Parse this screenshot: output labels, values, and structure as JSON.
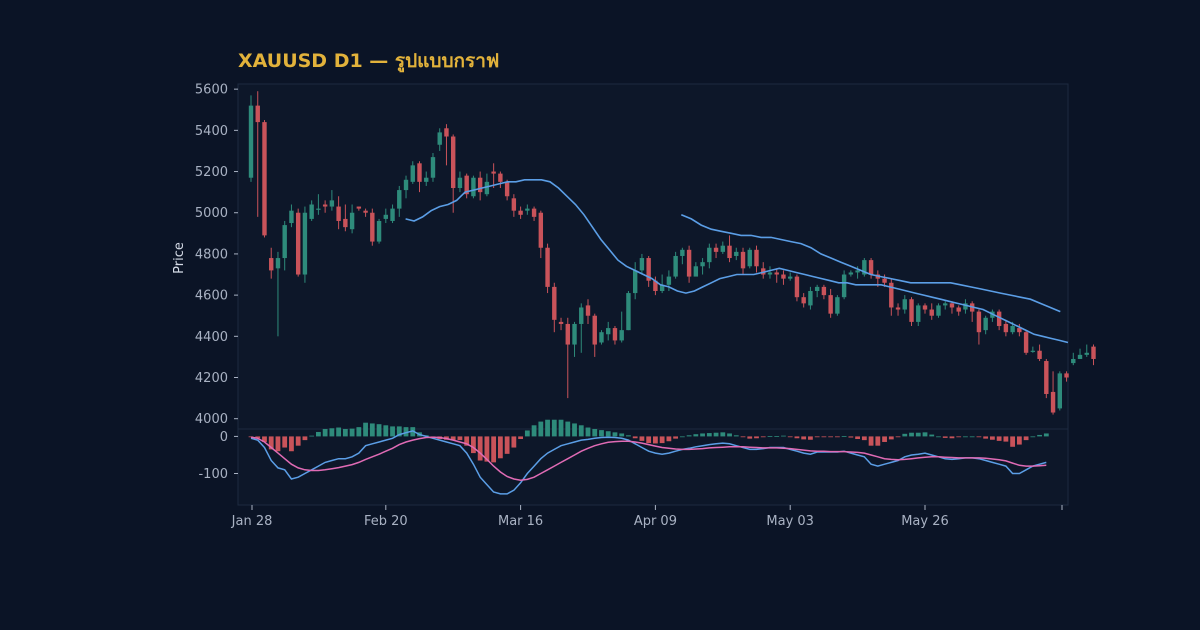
{
  "chart_data": {
    "type": "candlestick",
    "title": "XAUUSD D1 — รูปแบบกราฟ",
    "ylabel": "Price",
    "ylim": [
      3950,
      5625
    ],
    "yticks": [
      4000,
      4200,
      4400,
      4600,
      4800,
      5000,
      5200,
      5400,
      5600
    ],
    "x_tick_labels": [
      "Jan 28",
      "Feb 20",
      "Mar 16",
      "Apr 09",
      "May 03",
      "May 26"
    ],
    "macd_ylim": [
      -185,
      20
    ],
    "macd_yticks": [
      0,
      -100
    ],
    "colors": {
      "up": "#2e8b7b",
      "down": "#c9535a",
      "ma_fast": "#5b9ee6",
      "ma_slow": "#5b9ee6",
      "macd": "#5b9ee6",
      "signal": "#e06bb5"
    },
    "candles": [
      [
        5170,
        5520,
        5570,
        5150
      ],
      [
        5520,
        5440,
        5590,
        4980
      ],
      [
        5440,
        4890,
        5450,
        4880
      ],
      [
        4780,
        4720,
        4830,
        4680
      ],
      [
        4730,
        4780,
        4810,
        4400
      ],
      [
        4780,
        4940,
        4960,
        4720
      ],
      [
        4950,
        5010,
        5040,
        4930
      ],
      [
        5000,
        4700,
        5020,
        4690
      ],
      [
        4700,
        5000,
        5030,
        4660
      ],
      [
        4970,
        5040,
        5060,
        4960
      ],
      [
        5020,
        5020,
        5090,
        4990
      ],
      [
        5040,
        5030,
        5060,
        5000
      ],
      [
        5030,
        5060,
        5110,
        5010
      ],
      [
        5030,
        4960,
        5080,
        4920
      ],
      [
        4970,
        4930,
        5040,
        4910
      ],
      [
        4920,
        5000,
        5040,
        4900
      ],
      [
        5030,
        5020,
        5030,
        5010
      ],
      [
        5010,
        5000,
        5020,
        4980
      ],
      [
        5000,
        4860,
        5020,
        4840
      ],
      [
        4860,
        4960,
        4970,
        4850
      ],
      [
        4970,
        4990,
        5020,
        4950
      ],
      [
        4960,
        5020,
        5040,
        4950
      ],
      [
        5020,
        5110,
        5130,
        4980
      ],
      [
        5110,
        5160,
        5180,
        5070
      ],
      [
        5150,
        5230,
        5250,
        5140
      ],
      [
        5240,
        5150,
        5250,
        5100
      ],
      [
        5150,
        5170,
        5200,
        5130
      ],
      [
        5170,
        5270,
        5290,
        5150
      ],
      [
        5330,
        5390,
        5410,
        5300
      ],
      [
        5410,
        5370,
        5430,
        5230
      ],
      [
        5370,
        5120,
        5380,
        5000
      ],
      [
        5120,
        5170,
        5200,
        5100
      ],
      [
        5180,
        5090,
        5190,
        5070
      ],
      [
        5080,
        5170,
        5180,
        5070
      ],
      [
        5170,
        5100,
        5200,
        5060
      ],
      [
        5090,
        5150,
        5190,
        5080
      ],
      [
        5200,
        5190,
        5240,
        5120
      ],
      [
        5190,
        5150,
        5200,
        5120
      ],
      [
        5150,
        5080,
        5160,
        5060
      ],
      [
        5070,
        5010,
        5090,
        4980
      ],
      [
        5010,
        4990,
        5030,
        4970
      ],
      [
        5010,
        5020,
        5040,
        4990
      ],
      [
        5020,
        4980,
        5030,
        4960
      ],
      [
        5000,
        4830,
        5010,
        4780
      ],
      [
        4830,
        4640,
        4850,
        4610
      ],
      [
        4640,
        4480,
        4660,
        4420
      ],
      [
        4470,
        4460,
        4490,
        4430
      ],
      [
        4460,
        4360,
        4490,
        4100
      ],
      [
        4360,
        4460,
        4470,
        4300
      ],
      [
        4460,
        4540,
        4560,
        4320
      ],
      [
        4550,
        4500,
        4580,
        4460
      ],
      [
        4500,
        4360,
        4510,
        4300
      ],
      [
        4370,
        4420,
        4430,
        4360
      ],
      [
        4410,
        4440,
        4470,
        4380
      ],
      [
        4440,
        4380,
        4450,
        4360
      ],
      [
        4380,
        4430,
        4520,
        4370
      ],
      [
        4430,
        4610,
        4620,
        4430
      ],
      [
        4610,
        4720,
        4760,
        4580
      ],
      [
        4720,
        4780,
        4800,
        4700
      ],
      [
        4780,
        4670,
        4790,
        4640
      ],
      [
        4670,
        4620,
        4690,
        4600
      ],
      [
        4620,
        4650,
        4700,
        4610
      ],
      [
        4650,
        4690,
        4720,
        4620
      ],
      [
        4690,
        4790,
        4810,
        4680
      ],
      [
        4790,
        4820,
        4830,
        4750
      ],
      [
        4820,
        4690,
        4840,
        4660
      ],
      [
        4690,
        4740,
        4760,
        4700
      ],
      [
        4740,
        4760,
        4780,
        4700
      ],
      [
        4760,
        4830,
        4850,
        4730
      ],
      [
        4830,
        4810,
        4850,
        4780
      ],
      [
        4810,
        4840,
        4860,
        4800
      ],
      [
        4840,
        4780,
        4890,
        4760
      ],
      [
        4790,
        4810,
        4830,
        4770
      ],
      [
        4810,
        4730,
        4830,
        4700
      ],
      [
        4740,
        4820,
        4830,
        4730
      ],
      [
        4820,
        4740,
        4840,
        4710
      ],
      [
        4730,
        4700,
        4760,
        4680
      ],
      [
        4700,
        4710,
        4740,
        4680
      ],
      [
        4710,
        4700,
        4730,
        4660
      ],
      [
        4700,
        4680,
        4720,
        4650
      ],
      [
        4680,
        4690,
        4710,
        4670
      ],
      [
        4690,
        4590,
        4700,
        4570
      ],
      [
        4590,
        4560,
        4610,
        4540
      ],
      [
        4550,
        4620,
        4640,
        4530
      ],
      [
        4620,
        4640,
        4650,
        4590
      ],
      [
        4640,
        4600,
        4650,
        4580
      ],
      [
        4600,
        4510,
        4630,
        4490
      ],
      [
        4510,
        4590,
        4600,
        4500
      ],
      [
        4590,
        4700,
        4720,
        4580
      ],
      [
        4700,
        4710,
        4720,
        4690
      ],
      [
        4710,
        4720,
        4740,
        4680
      ],
      [
        4700,
        4770,
        4780,
        4690
      ],
      [
        4770,
        4700,
        4780,
        4680
      ],
      [
        4700,
        4680,
        4720,
        4640
      ],
      [
        4680,
        4660,
        4700,
        4640
      ],
      [
        4660,
        4540,
        4680,
        4500
      ],
      [
        4540,
        4530,
        4560,
        4500
      ],
      [
        4530,
        4580,
        4600,
        4510
      ],
      [
        4580,
        4470,
        4590,
        4450
      ],
      [
        4470,
        4550,
        4560,
        4450
      ],
      [
        4550,
        4530,
        4560,
        4510
      ],
      [
        4530,
        4500,
        4560,
        4480
      ],
      [
        4500,
        4550,
        4560,
        4490
      ],
      [
        4550,
        4560,
        4570,
        4530
      ],
      [
        4560,
        4540,
        4570,
        4510
      ],
      [
        4540,
        4520,
        4550,
        4500
      ],
      [
        4530,
        4560,
        4580,
        4510
      ],
      [
        4560,
        4520,
        4570,
        4470
      ],
      [
        4520,
        4420,
        4530,
        4360
      ],
      [
        4430,
        4490,
        4500,
        4410
      ],
      [
        4490,
        4520,
        4530,
        4470
      ],
      [
        4520,
        4450,
        4530,
        4430
      ],
      [
        4460,
        4420,
        4480,
        4400
      ],
      [
        4420,
        4450,
        4470,
        4410
      ],
      [
        4440,
        4420,
        4460,
        4400
      ],
      [
        4420,
        4320,
        4430,
        4310
      ],
      [
        4330,
        4330,
        4350,
        4320
      ],
      [
        4330,
        4290,
        4360,
        4280
      ],
      [
        4280,
        4120,
        4290,
        4100
      ],
      [
        4130,
        4030,
        4230,
        4020
      ],
      [
        4050,
        4220,
        4230,
        4040
      ],
      [
        4220,
        4200,
        4230,
        4180
      ],
      [
        4270,
        4290,
        4320,
        4260
      ],
      [
        4290,
        4310,
        4340,
        4290
      ],
      [
        4310,
        4320,
        4360,
        4300
      ],
      [
        4350,
        4290,
        4360,
        4260
      ]
    ],
    "ma_fast": [
      [
        19,
        4970
      ],
      [
        20,
        4960
      ],
      [
        21,
        4980
      ],
      [
        22,
        5010
      ],
      [
        23,
        5030
      ],
      [
        24,
        5040
      ],
      [
        25,
        5060
      ],
      [
        26,
        5100
      ],
      [
        27,
        5110
      ],
      [
        28,
        5120
      ],
      [
        29,
        5130
      ],
      [
        30,
        5140
      ],
      [
        31,
        5150
      ],
      [
        32,
        5150
      ],
      [
        33,
        5160
      ],
      [
        34,
        5160
      ],
      [
        35,
        5160
      ],
      [
        36,
        5150
      ],
      [
        37,
        5120
      ],
      [
        38,
        5080
      ],
      [
        39,
        5040
      ],
      [
        40,
        4990
      ],
      [
        41,
        4930
      ],
      [
        42,
        4870
      ],
      [
        43,
        4820
      ],
      [
        44,
        4770
      ],
      [
        45,
        4740
      ],
      [
        46,
        4720
      ],
      [
        47,
        4700
      ],
      [
        48,
        4680
      ],
      [
        49,
        4650
      ],
      [
        50,
        4640
      ],
      [
        51,
        4620
      ],
      [
        52,
        4610
      ],
      [
        53,
        4620
      ],
      [
        54,
        4640
      ],
      [
        55,
        4660
      ],
      [
        56,
        4680
      ],
      [
        57,
        4690
      ],
      [
        58,
        4700
      ],
      [
        59,
        4700
      ],
      [
        60,
        4700
      ],
      [
        61,
        4710
      ],
      [
        62,
        4720
      ],
      [
        63,
        4730
      ],
      [
        64,
        4720
      ],
      [
        65,
        4710
      ],
      [
        66,
        4700
      ],
      [
        67,
        4690
      ],
      [
        68,
        4680
      ],
      [
        69,
        4670
      ],
      [
        70,
        4660
      ],
      [
        71,
        4660
      ],
      [
        72,
        4650
      ],
      [
        73,
        4650
      ],
      [
        74,
        4650
      ],
      [
        75,
        4650
      ],
      [
        76,
        4640
      ],
      [
        77,
        4630
      ],
      [
        78,
        4620
      ],
      [
        79,
        4610
      ],
      [
        80,
        4600
      ],
      [
        81,
        4590
      ],
      [
        82,
        4580
      ],
      [
        83,
        4570
      ],
      [
        84,
        4560
      ],
      [
        85,
        4550
      ],
      [
        86,
        4540
      ],
      [
        87,
        4530
      ],
      [
        88,
        4510
      ],
      [
        89,
        4490
      ],
      [
        90,
        4470
      ],
      [
        91,
        4450
      ],
      [
        92,
        4430
      ],
      [
        93,
        4410
      ],
      [
        94,
        4400
      ],
      [
        95,
        4390
      ],
      [
        96,
        4380
      ],
      [
        97,
        4370
      ]
    ],
    "ma_slow": [
      [
        43,
        4990
      ],
      [
        44,
        4970
      ],
      [
        45,
        4940
      ],
      [
        46,
        4920
      ],
      [
        47,
        4910
      ],
      [
        48,
        4900
      ],
      [
        49,
        4890
      ],
      [
        50,
        4890
      ],
      [
        51,
        4880
      ],
      [
        52,
        4880
      ],
      [
        53,
        4870
      ],
      [
        54,
        4860
      ],
      [
        55,
        4850
      ],
      [
        56,
        4830
      ],
      [
        57,
        4800
      ],
      [
        58,
        4780
      ],
      [
        59,
        4760
      ],
      [
        60,
        4740
      ],
      [
        61,
        4720
      ],
      [
        62,
        4700
      ],
      [
        63,
        4690
      ],
      [
        64,
        4680
      ],
      [
        65,
        4670
      ],
      [
        66,
        4660
      ],
      [
        67,
        4660
      ],
      [
        68,
        4660
      ],
      [
        69,
        4660
      ],
      [
        70,
        4660
      ],
      [
        71,
        4650
      ],
      [
        72,
        4640
      ],
      [
        73,
        4630
      ],
      [
        74,
        4620
      ],
      [
        75,
        4610
      ],
      [
        76,
        4600
      ],
      [
        77,
        4590
      ],
      [
        78,
        4580
      ],
      [
        79,
        4560
      ],
      [
        80,
        4540
      ],
      [
        81,
        4520
      ]
    ],
    "macd": [
      -5,
      -10,
      -30,
      -65,
      -85,
      -90,
      -115,
      -110,
      -100,
      -90,
      -80,
      -70,
      -65,
      -60,
      -60,
      -55,
      -45,
      -25,
      -20,
      -15,
      -10,
      -5,
      5,
      10,
      15,
      5,
      0,
      -5,
      -10,
      -15,
      -20,
      -25,
      -45,
      -75,
      -110,
      -130,
      -150,
      -155,
      -155,
      -145,
      -125,
      -100,
      -80,
      -60,
      -45,
      -35,
      -25,
      -20,
      -15,
      -10,
      -8,
      -5,
      -3,
      -2,
      -3,
      -5,
      -10,
      -20,
      -30,
      -40,
      -45,
      -48,
      -45,
      -40,
      -35,
      -32,
      -28,
      -25,
      -22,
      -20,
      -18,
      -20,
      -25,
      -30,
      -35,
      -35,
      -33,
      -30,
      -30,
      -30,
      -35,
      -40,
      -45,
      -48,
      -42,
      -42,
      -42,
      -42,
      -40,
      -45,
      -50,
      -55,
      -75,
      -80,
      -75,
      -70,
      -65,
      -55,
      -50,
      -48,
      -45,
      -50,
      -55,
      -60,
      -62,
      -60,
      -58,
      -58,
      -60,
      -65,
      -70,
      -75,
      -80,
      -100,
      -100,
      -90,
      -80,
      -75,
      -70
    ],
    "signal": [
      -2,
      -5,
      -15,
      -30,
      -45,
      -60,
      -75,
      -85,
      -90,
      -92,
      -92,
      -90,
      -87,
      -84,
      -80,
      -76,
      -70,
      -62,
      -55,
      -48,
      -40,
      -32,
      -22,
      -15,
      -10,
      -6,
      -3,
      -2,
      -3,
      -6,
      -10,
      -15,
      -20,
      -30,
      -45,
      -62,
      -80,
      -96,
      -108,
      -115,
      -118,
      -116,
      -110,
      -100,
      -90,
      -80,
      -70,
      -60,
      -50,
      -40,
      -32,
      -25,
      -20,
      -16,
      -14,
      -13,
      -13,
      -15,
      -18,
      -22,
      -26,
      -30,
      -32,
      -34,
      -35,
      -35,
      -34,
      -33,
      -31,
      -30,
      -29,
      -28,
      -28,
      -28,
      -29,
      -30,
      -31,
      -31,
      -31,
      -32,
      -33,
      -35,
      -37,
      -39,
      -40,
      -40,
      -41,
      -41,
      -41,
      -42,
      -43,
      -45,
      -50,
      -55,
      -60,
      -62,
      -63,
      -62,
      -60,
      -58,
      -56,
      -55,
      -55,
      -56,
      -57,
      -58,
      -58,
      -58,
      -58,
      -59,
      -61,
      -63,
      -66,
      -72,
      -78,
      -80,
      -80,
      -79,
      -78
    ],
    "histogram": [
      -2,
      -5,
      -15,
      -35,
      -40,
      -30,
      -40,
      -25,
      -10,
      2,
      12,
      20,
      22,
      24,
      20,
      21,
      25,
      37,
      35,
      33,
      30,
      27,
      27,
      25,
      25,
      11,
      3,
      -3,
      -7,
      -9,
      -10,
      -10,
      -25,
      -45,
      -65,
      -68,
      -70,
      -59,
      -47,
      -30,
      -7,
      16,
      30,
      40,
      45,
      45,
      45,
      40,
      35,
      30,
      24,
      20,
      17,
      14,
      11,
      8,
      3,
      -5,
      -12,
      -18,
      -19,
      -18,
      -13,
      -6,
      0,
      3,
      6,
      8,
      9,
      10,
      11,
      8,
      3,
      -2,
      -6,
      -5,
      -2,
      1,
      1,
      2,
      -2,
      -5,
      -8,
      -9,
      -2,
      -2,
      -1,
      -1,
      1,
      -3,
      -7,
      -10,
      -25,
      -25,
      -15,
      -8,
      -2,
      7,
      10,
      10,
      11,
      5,
      0,
      -4,
      -5,
      -2,
      0,
      0,
      -2,
      -6,
      -9,
      -12,
      -14,
      -28,
      -22,
      -10,
      0,
      4,
      8
    ]
  }
}
